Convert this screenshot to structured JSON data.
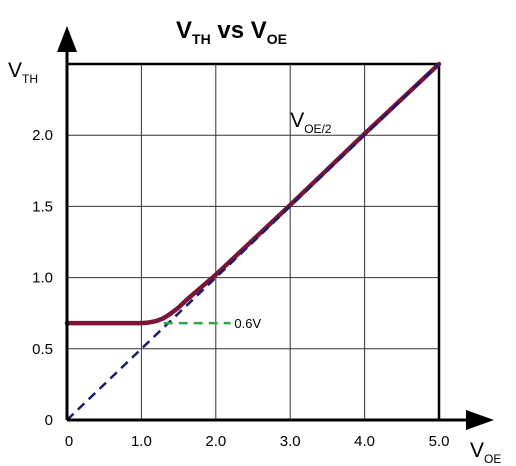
{
  "chart_data": {
    "type": "line",
    "title": {
      "main": "V",
      "main_sub": "TH",
      "vs": " vs ",
      "ref": "V",
      "ref_sub": "OE"
    },
    "xlabel": {
      "main": "V",
      "sub": "OE"
    },
    "ylabel": {
      "main": "V",
      "sub": "TH"
    },
    "xlim": [
      0,
      5
    ],
    "ylim": [
      0,
      2.5
    ],
    "xticks": [
      {
        "value": 0,
        "label": "0"
      },
      {
        "value": 1,
        "label": "1.0"
      },
      {
        "value": 2,
        "label": "2.0"
      },
      {
        "value": 3,
        "label": "3.0"
      },
      {
        "value": 4,
        "label": "4.0"
      },
      {
        "value": 5,
        "label": "5.0"
      }
    ],
    "yticks": [
      {
        "value": 0,
        "label": "0"
      },
      {
        "value": 0.5,
        "label": "0.5"
      },
      {
        "value": 1,
        "label": "1.0"
      },
      {
        "value": 1.5,
        "label": "1.5"
      },
      {
        "value": 2,
        "label": "2.0"
      }
    ],
    "grid": true,
    "series": [
      {
        "style": "solid",
        "color": "#7b1538",
        "x": [
          0,
          0.5,
          0.9,
          1.0,
          1.1,
          1.2,
          1.3,
          1.4,
          1.5,
          1.6,
          1.8,
          2.0,
          3.0,
          4.0,
          5.0
        ],
        "y": [
          0.68,
          0.68,
          0.68,
          0.68,
          0.685,
          0.695,
          0.715,
          0.75,
          0.79,
          0.84,
          0.93,
          1.02,
          1.51,
          2.01,
          2.5
        ]
      },
      {
        "style": "dashed",
        "color": "#1c1c6e",
        "x": [
          0,
          5
        ],
        "y": [
          0,
          2.5
        ]
      },
      {
        "style": "dashed",
        "color": "#2ea84a",
        "x": [
          1.3,
          2.2
        ],
        "y": [
          0.68,
          0.68
        ]
      }
    ],
    "annotations": [
      {
        "id": "voe2",
        "text": "V",
        "sub": "OE/2",
        "x": 3.0,
        "y": 2.1
      },
      {
        "id": "v06",
        "text": "0.6V",
        "x": 2.25,
        "y": 0.68
      }
    ]
  }
}
